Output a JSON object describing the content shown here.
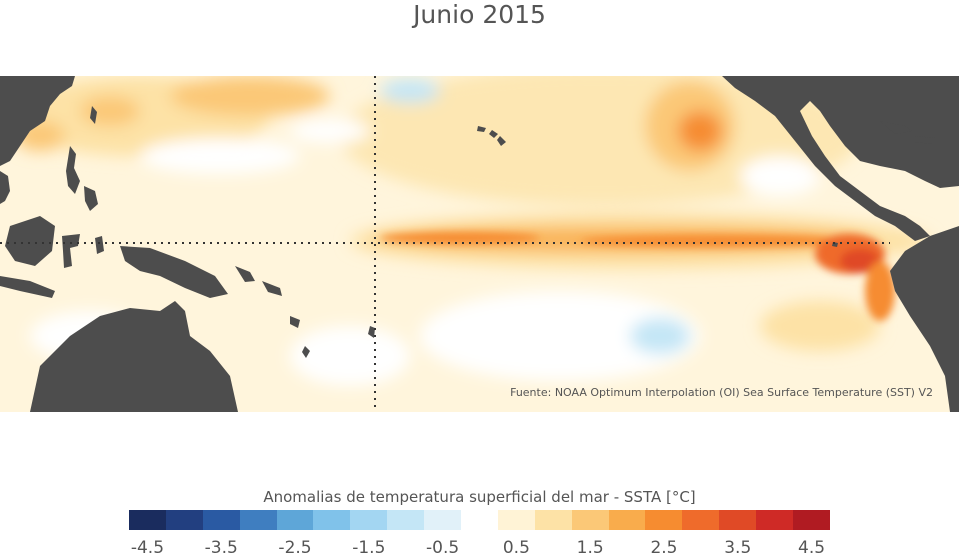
{
  "title": "Junio 2015",
  "source": "Fuente: NOAA Optimum Interpolation (OI) Sea Surface Temperature (SST) V2",
  "legend": {
    "title": "Anomalias de temperatura superficial del mar - SSTA  [°C]",
    "colors": [
      "#1a2c5e",
      "#223f80",
      "#2a5aa3",
      "#3f7ec0",
      "#5ea6d8",
      "#80c2ea",
      "#a3d6f2",
      "#c4e6f6",
      "#e1f1f9",
      "#ffffff",
      "#fff3d6",
      "#fde2a6",
      "#fbc877",
      "#f9ac4c",
      "#f68c30",
      "#ef6b2b",
      "#e04a26",
      "#cf2a26",
      "#b01b22"
    ],
    "tick_labels": [
      "-4.5",
      "-3.5",
      "-2.5",
      "-1.5",
      "-0.5",
      "0.5",
      "1.5",
      "2.5",
      "3.5",
      "4.5"
    ]
  },
  "map": {
    "land_color": "#4d4d4d",
    "ocean_base_color": "#ffffff",
    "reference_lines": "dotted"
  }
}
